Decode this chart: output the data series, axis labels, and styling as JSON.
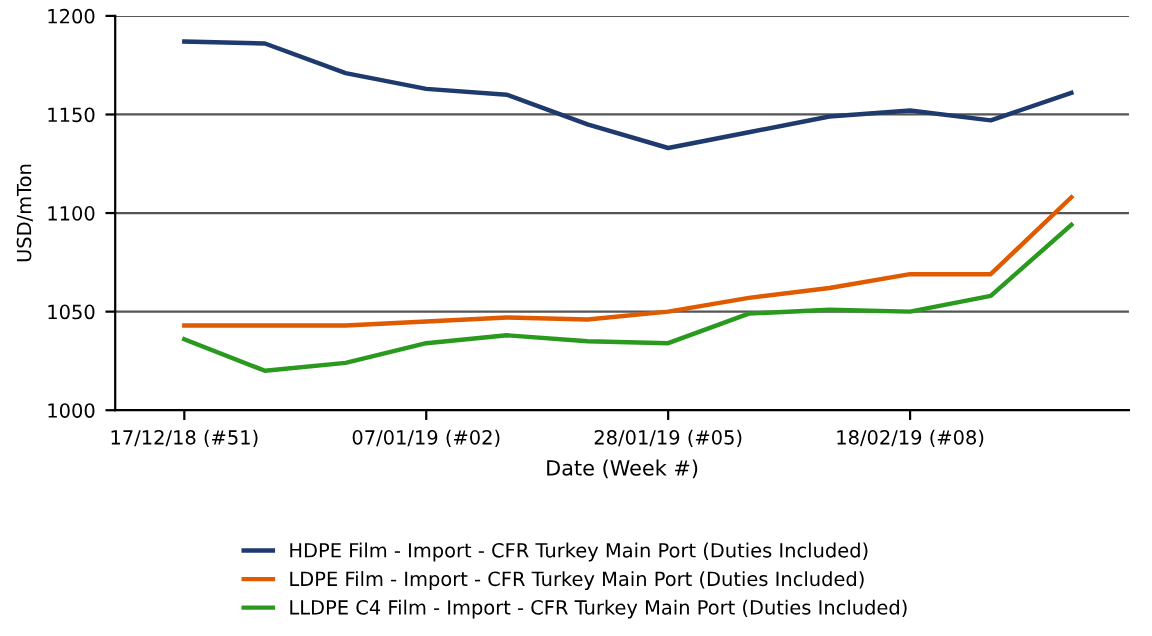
{
  "chart_data": {
    "type": "line",
    "xlabel": "Date (Week #)",
    "ylabel": "USD/mTon",
    "x": [
      "2018-12-17",
      "2018-12-24",
      "2018-12-31",
      "2019-01-07",
      "2019-01-14",
      "2019-01-21",
      "2019-01-28",
      "2019-02-04",
      "2019-02-11",
      "2019-02-18",
      "2019-02-25",
      "2019-03-04"
    ],
    "series": [
      {
        "name": "HDPE Film - Import - CFR Turkey Main Port (Duties Included)",
        "color": "#1f3a6e",
        "values": [
          1187,
          1186,
          1171,
          1163,
          1160,
          1145,
          1133,
          1141,
          1149,
          1152,
          1147,
          1161
        ]
      },
      {
        "name": "LDPE Film - Import - CFR Turkey Main Port (Duties Included)",
        "color": "#e05a00",
        "values": [
          1043,
          1043,
          1043,
          1045,
          1047,
          1046,
          1050,
          1057,
          1062,
          1069,
          1069,
          1108
        ]
      },
      {
        "name": "LLDPE C4 Film - Import - CFR Turkey Main Port (Duties Included)",
        "color": "#2a9a1e",
        "values": [
          1036,
          1020,
          1024,
          1034,
          1038,
          1035,
          1034,
          1049,
          1051,
          1050,
          1058,
          1094
        ]
      }
    ],
    "xlim": [
      "2018-12-11",
      "2019-03-09"
    ],
    "xticks": [
      {
        "value": "2018-12-17",
        "label": "17/12/18 (#51)"
      },
      {
        "value": "2019-01-07",
        "label": "07/01/19 (#02)"
      },
      {
        "value": "2019-01-28",
        "label": "28/01/19 (#05)"
      },
      {
        "value": "2019-02-18",
        "label": "18/02/19 (#08)"
      }
    ],
    "ylim": [
      1000,
      1200
    ],
    "yticks": [
      1000,
      1050,
      1100,
      1150,
      1200
    ],
    "grid": "y",
    "legend": "bottom",
    "marker": "none",
    "line_style": "solid"
  }
}
